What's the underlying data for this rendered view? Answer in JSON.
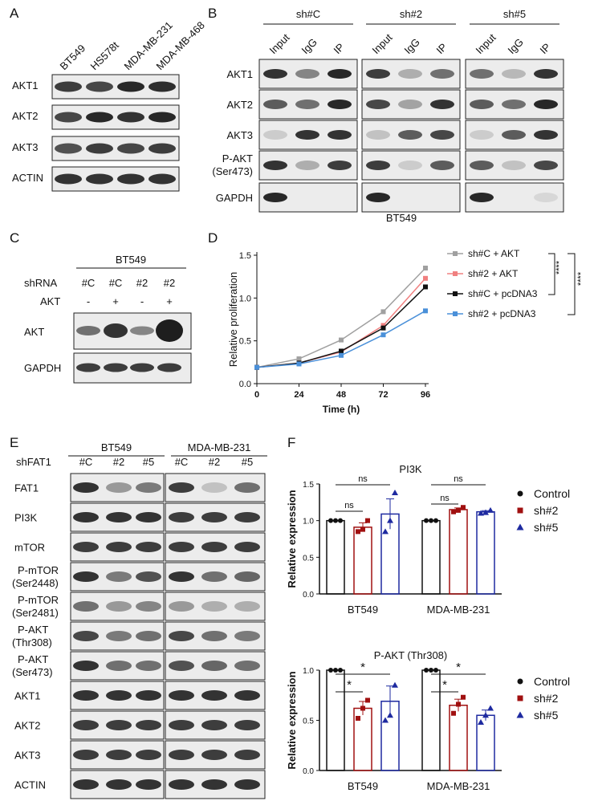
{
  "panels": {
    "A": {
      "letter": "A",
      "lanes": [
        "BT549",
        "HS578t",
        "MDA-MB-231",
        "MDA-MB-468"
      ],
      "rows": [
        "AKT1",
        "AKT2",
        "AKT3",
        "ACTIN"
      ]
    },
    "B": {
      "letter": "B",
      "groups": [
        "sh#C",
        "sh#2",
        "sh#5"
      ],
      "lanes": [
        "Input",
        "IgG",
        "IP"
      ],
      "rows": [
        "AKT1",
        "AKT2",
        "AKT3",
        "P-AKT",
        "(Ser473)",
        "GAPDH"
      ],
      "footer": "BT549"
    },
    "C": {
      "letter": "C",
      "cell": "BT549",
      "shrna_label": "shRNA",
      "shrna": [
        "#C",
        "#C",
        "#2",
        "#2"
      ],
      "akt_label": "AKT",
      "akt": [
        "-",
        "+",
        "-",
        "+"
      ],
      "rows": [
        "AKT",
        "GAPDH"
      ]
    },
    "D": {
      "letter": "D",
      "sig1": "****",
      "sig2": "****"
    },
    "E": {
      "letter": "E",
      "label": "shFAT1",
      "cells": [
        "BT549",
        "MDA-MB-231"
      ],
      "lanes": [
        "#C",
        "#2",
        "#5",
        "#C",
        "#2",
        "#5"
      ],
      "rows": [
        "FAT1",
        "PI3K",
        "mTOR",
        "P-mTOR",
        "(Ser2448)",
        "P-mTOR",
        "(Ser2481)",
        "P-AKT",
        "(Thr308)",
        "P-AKT",
        "(Ser473)",
        "AKT1",
        "AKT2",
        "AKT3",
        "ACTIN"
      ]
    },
    "F": {
      "letter": "F",
      "ns": "ns",
      "star": "*"
    }
  },
  "colors": {
    "grey": "#a0a0a0",
    "pink": "#f08080",
    "black": "#111111",
    "blue": "#4a90d9",
    "darkred": "#a01010",
    "navy": "#1e2aa0"
  },
  "chart_data": [
    {
      "type": "line",
      "title": "",
      "xlabel": "Time (h)",
      "ylabel": "Relative proliferation",
      "x": [
        0,
        24,
        48,
        72,
        96
      ],
      "xlim": [
        0,
        96
      ],
      "ylim": [
        0,
        1.5
      ],
      "xticks": [
        "0",
        "24",
        "48",
        "72",
        "96"
      ],
      "yticks": [
        "0.0",
        "0.5",
        "1.0",
        "1.5"
      ],
      "legend_position": "right",
      "series": [
        {
          "name": "sh#C + AKT",
          "values": [
            0.19,
            0.29,
            0.51,
            0.84,
            1.35
          ]
        },
        {
          "name": "sh#2 + AKT",
          "values": [
            0.19,
            0.24,
            0.37,
            0.68,
            1.23
          ]
        },
        {
          "name": "sh#C + pcDNA3",
          "values": [
            0.19,
            0.24,
            0.38,
            0.65,
            1.13
          ]
        },
        {
          "name": "sh#2 + pcDNA3",
          "values": [
            0.19,
            0.23,
            0.33,
            0.57,
            0.85
          ]
        }
      ]
    },
    {
      "type": "bar",
      "title": "PI3K",
      "xlabel": "",
      "ylabel": "Relative expression",
      "categories": [
        "BT549",
        "MDA-MB-231"
      ],
      "ylim": [
        0,
        1.5
      ],
      "yticks": [
        "0.0",
        "0.5",
        "1.0",
        "1.5"
      ],
      "legend_position": "right",
      "series": [
        {
          "name": "Control",
          "values": [
            1.0,
            1.0
          ],
          "points": [
            [
              1.0,
              1.0,
              1.0
            ],
            [
              1.0,
              1.0,
              1.0
            ]
          ]
        },
        {
          "name": "sh#2",
          "values": [
            0.91,
            1.15
          ],
          "points": [
            [
              0.85,
              0.88,
              1.0
            ],
            [
              1.12,
              1.14,
              1.18
            ]
          ]
        },
        {
          "name": "sh#5",
          "values": [
            1.09,
            1.12
          ],
          "points": [
            [
              0.85,
              1.0,
              1.38
            ],
            [
              1.1,
              1.11,
              1.14
            ]
          ]
        }
      ]
    },
    {
      "type": "bar",
      "title": "P-AKT (Thr308)",
      "xlabel": "",
      "ylabel": "Relative expression",
      "categories": [
        "BT549",
        "MDA-MB-231"
      ],
      "ylim": [
        0,
        1.0
      ],
      "yticks": [
        "0.0",
        "0.5",
        "1.0"
      ],
      "legend_position": "right",
      "series": [
        {
          "name": "Control",
          "values": [
            1.0,
            1.0
          ],
          "points": [
            [
              1.0,
              1.0,
              1.0
            ],
            [
              1.0,
              1.0,
              1.0
            ]
          ]
        },
        {
          "name": "sh#2",
          "values": [
            0.62,
            0.65
          ],
          "points": [
            [
              0.52,
              0.62,
              0.7
            ],
            [
              0.57,
              0.66,
              0.73
            ]
          ]
        },
        {
          "name": "sh#5",
          "values": [
            0.69,
            0.55
          ],
          "points": [
            [
              0.5,
              0.55,
              0.85
            ],
            [
              0.48,
              0.55,
              0.62
            ]
          ]
        }
      ]
    }
  ]
}
